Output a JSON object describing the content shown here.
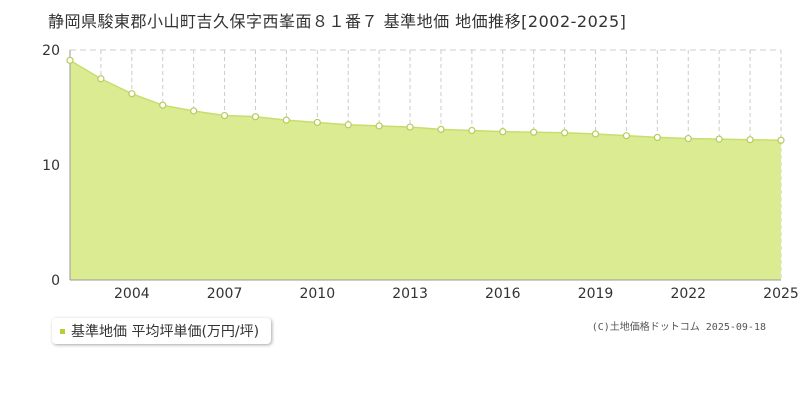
{
  "colors": {
    "area_fill": "#dbeb92",
    "line": "#c8dd6e",
    "marker_stroke": "#b5cc5a",
    "marker_fill": "#ffffff",
    "grid": "#cccccc",
    "legend_marker": "#b2d235",
    "axis": "#999999"
  },
  "chart_data": {
    "type": "area",
    "title": "静岡県駿東郡小山町吉久保字西峯面８１番７ 基準地価 地価推移[2002-2025]",
    "xlabel": "",
    "ylabel": "",
    "xlim": [
      2002,
      2025
    ],
    "ylim": [
      0,
      20
    ],
    "y_ticks": [
      "0",
      "10",
      "20"
    ],
    "x_tick_labels": [
      "2004",
      "2007",
      "2010",
      "2013",
      "2016",
      "2019",
      "2022",
      "2025"
    ],
    "x_tick_values": [
      2004,
      2007,
      2010,
      2013,
      2016,
      2019,
      2022,
      2025
    ],
    "grid": true,
    "legend_position": "bottom-left",
    "x": [
      2002,
      2003,
      2004,
      2005,
      2006,
      2007,
      2008,
      2009,
      2010,
      2011,
      2012,
      2013,
      2014,
      2015,
      2016,
      2017,
      2018,
      2019,
      2020,
      2021,
      2022,
      2023,
      2024,
      2025
    ],
    "series": [
      {
        "name": "基準地価 平均坪単価(万円/坪)",
        "values": [
          19.1,
          17.5,
          16.2,
          15.2,
          14.7,
          14.3,
          14.2,
          13.9,
          13.7,
          13.5,
          13.4,
          13.3,
          13.1,
          13.0,
          12.9,
          12.85,
          12.8,
          12.7,
          12.55,
          12.4,
          12.3,
          12.25,
          12.2,
          12.15
        ]
      }
    ]
  },
  "legend": {
    "label": "基準地価 平均坪単価(万円/坪)"
  },
  "credit": "(C)土地価格ドットコム 2025-09-18"
}
